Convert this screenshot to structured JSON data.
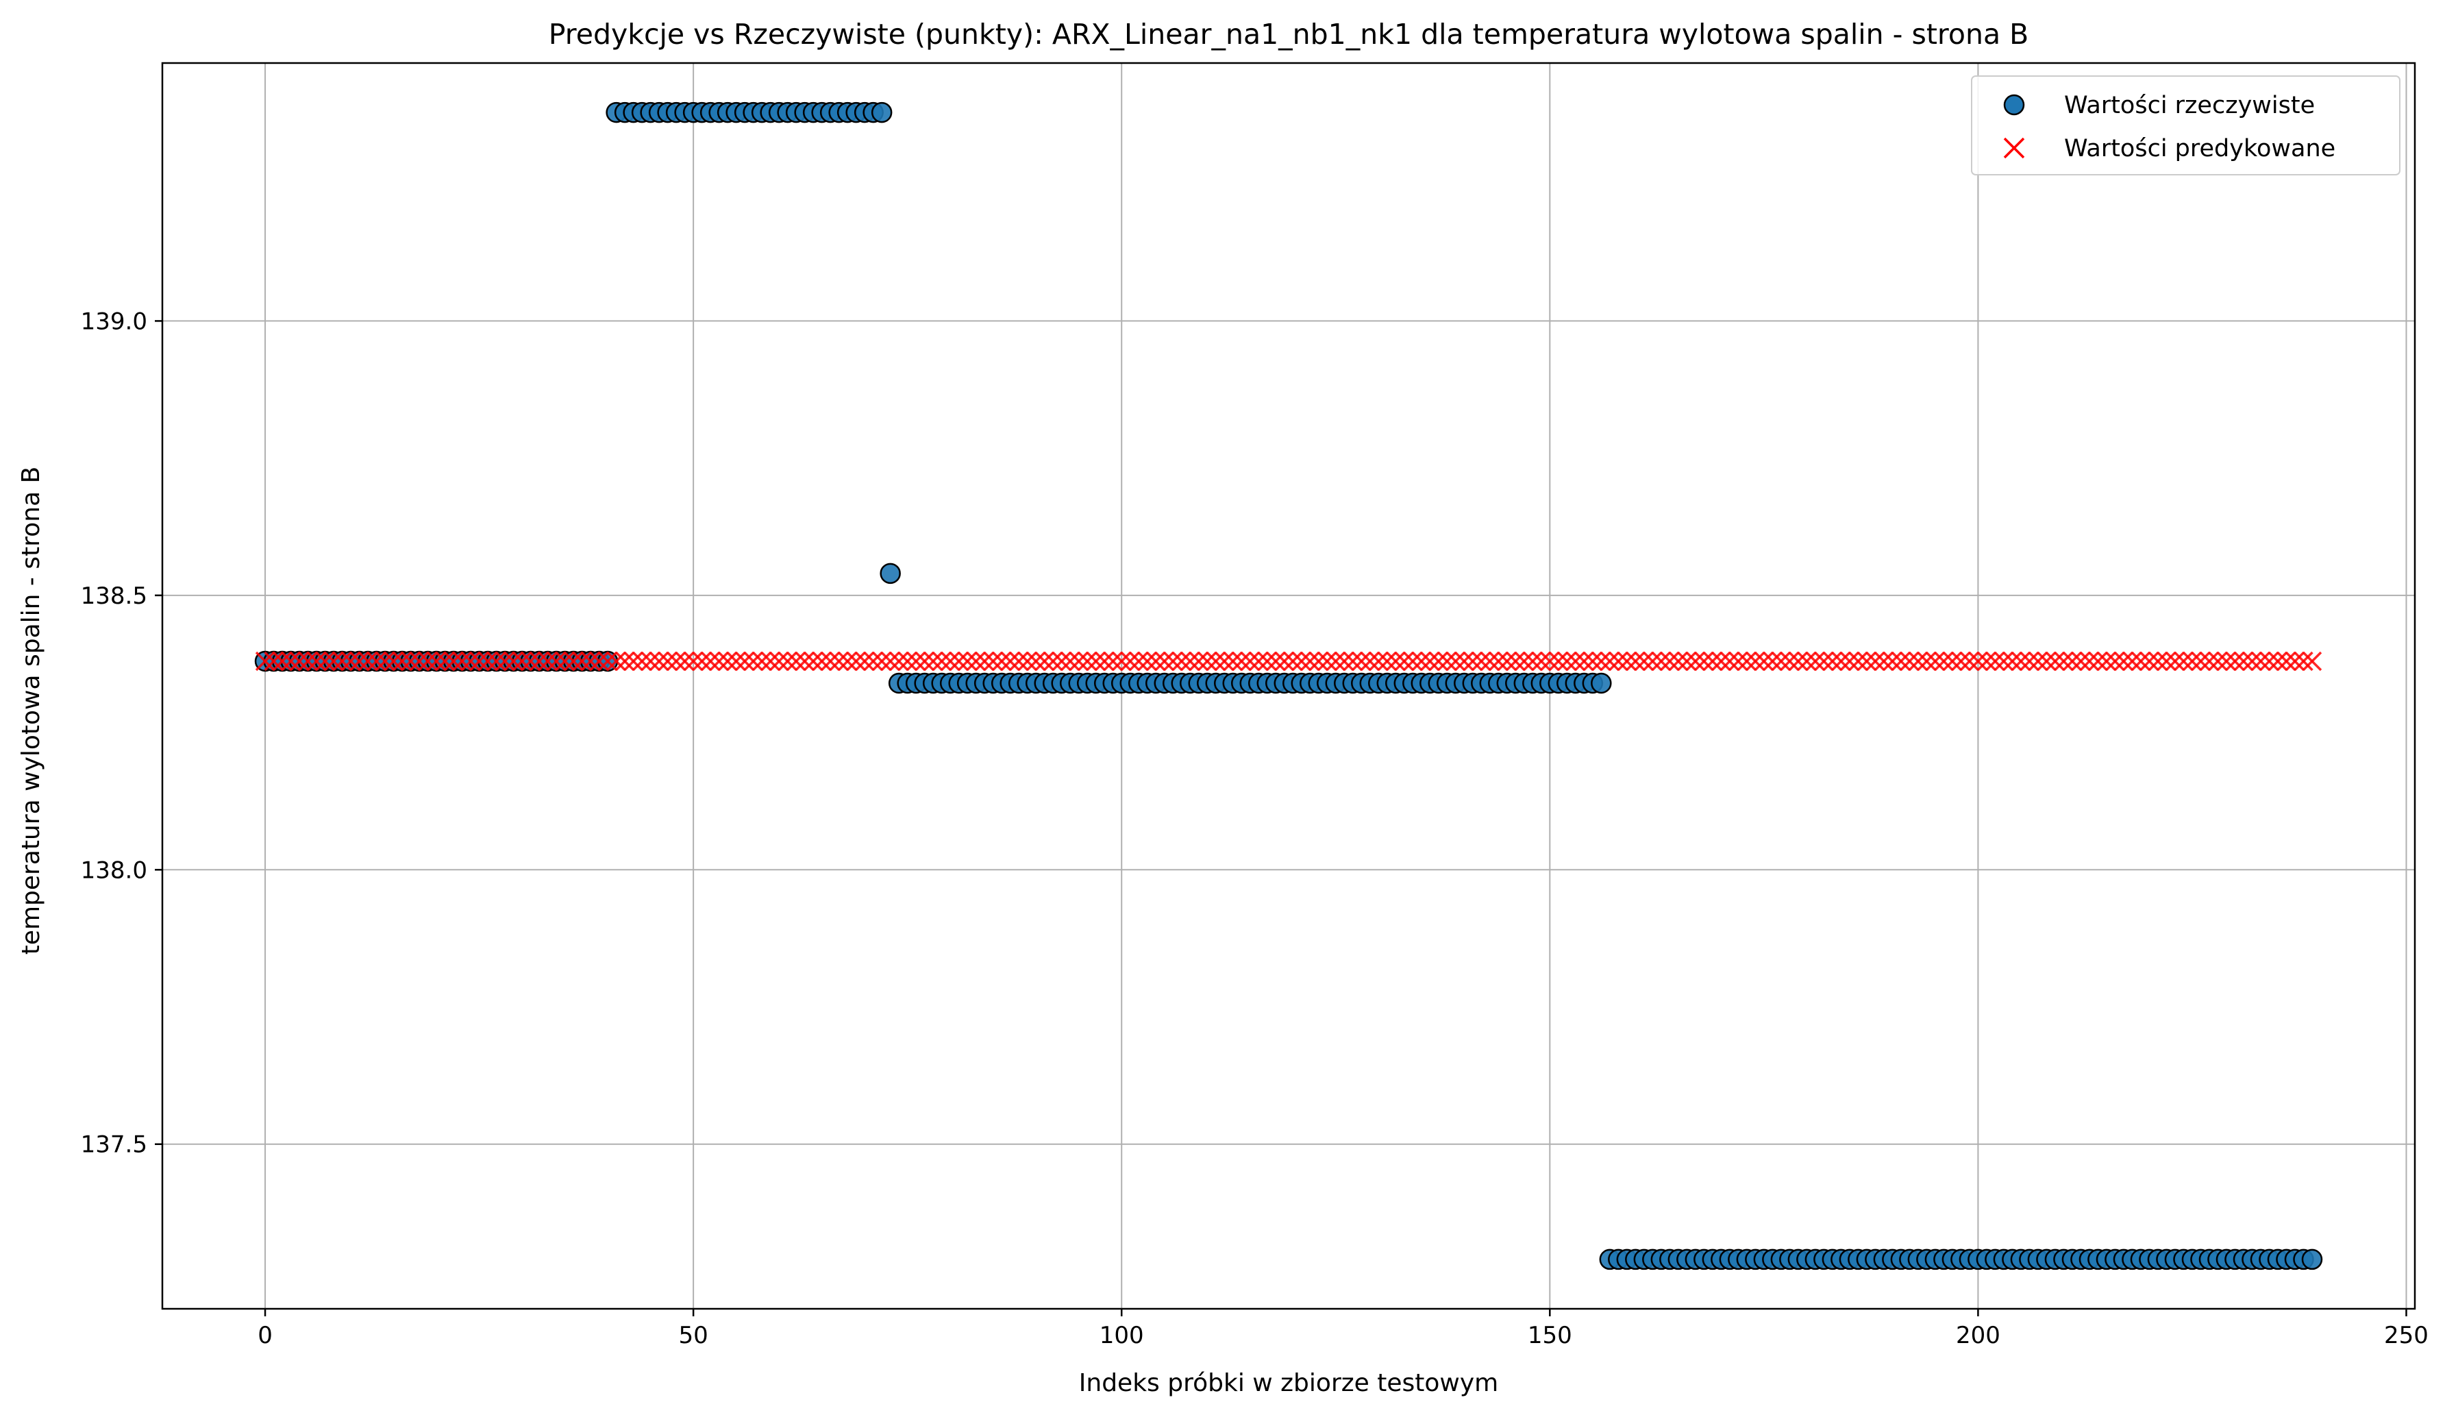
{
  "chart_data": {
    "type": "scatter",
    "title": "Predykcje vs Rzeczywiste (punkty): ARX_Linear_na1_nb1_nk1 dla temperatura wylotowa spalin - strona B",
    "xlabel": "Indeks próbki w zbiorze testowym",
    "ylabel": "temperatura wylotowa spalin - strona B",
    "xlim": [
      -12,
      251
    ],
    "ylim": [
      137.2,
      139.47
    ],
    "xticks": [
      0,
      50,
      100,
      150,
      200,
      250
    ],
    "yticks": [
      137.5,
      138.0,
      138.5,
      139.0
    ],
    "xtick_labels": [
      "0",
      "50",
      "100",
      "150",
      "200",
      "250"
    ],
    "ytick_labels": [
      "137.5",
      "138.0",
      "138.5",
      "139.0"
    ],
    "grid": true,
    "legend_position": "top-right",
    "series": [
      {
        "name": "Wartości rzeczywiste",
        "marker": "circle",
        "color": "#1f77b4",
        "edgecolor": "#000000",
        "segments": [
          {
            "x_start": 0,
            "x_end": 40,
            "y": 138.38
          },
          {
            "x_start": 41,
            "x_end": 72,
            "y": 139.38
          },
          {
            "x_start": 73,
            "x_end": 73,
            "y": 138.54
          },
          {
            "x_start": 74,
            "x_end": 156,
            "y": 138.34
          },
          {
            "x_start": 157,
            "x_end": 239,
            "y": 137.29
          }
        ]
      },
      {
        "name": "Wartości predykowane",
        "marker": "x",
        "color": "#ff0000",
        "segments": [
          {
            "x_start": 0,
            "x_end": 239,
            "y": 138.38
          }
        ]
      }
    ]
  }
}
